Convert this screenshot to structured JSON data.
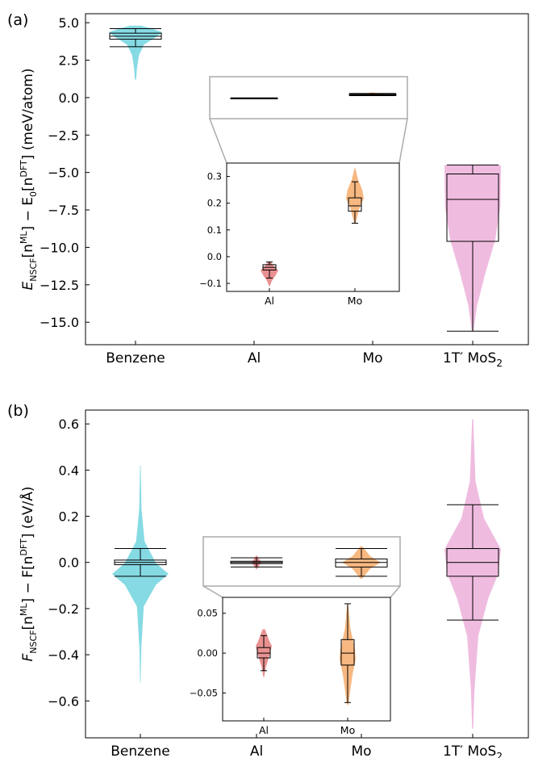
{
  "chart_data": [
    {
      "type": "violin",
      "panel_label": "(a)",
      "ylabel": "E_NSCF[n^ML] − E_0[n^DFT] (meV/atom)",
      "ylabel_parts": {
        "main1": "E",
        "sub1": "NSCF",
        "mid1": "[n",
        "sup1": "ML",
        "mid2": "] − E",
        "sub2": "0",
        "mid3": "[n",
        "sup2": "DFT",
        "tail": "] (meV/atom)"
      },
      "ylim": [
        -16.5,
        5.6
      ],
      "yticks": [
        5.0,
        2.5,
        0.0,
        -2.5,
        -5.0,
        -7.5,
        -10.0,
        -12.5,
        -15.0
      ],
      "ytick_labels": [
        "5.0",
        "2.5",
        "0.0",
        "−2.5",
        "−5.0",
        "−7.5",
        "−10.0",
        "−12.5",
        "−15.0"
      ],
      "categories": [
        "Benzene",
        "Al",
        "Mo",
        "1T′ MoS2"
      ],
      "category_labels": [
        {
          "base": "Benzene",
          "sub": ""
        },
        {
          "base": "Al",
          "sub": ""
        },
        {
          "base": "Mo",
          "sub": ""
        },
        {
          "base": "1T′ MoS",
          "sub": "2"
        }
      ],
      "series": [
        {
          "category": "Benzene",
          "color": "#7fd8e3",
          "min": 3.4,
          "q1": 3.9,
          "median": 4.1,
          "q3": 4.3,
          "max": 4.6,
          "violin_top": 4.8,
          "violin_bottom": 1.2
        },
        {
          "category": "Al",
          "color": "#e88b8b",
          "min": -0.05,
          "q1": -0.045,
          "median": -0.04,
          "q3": -0.03,
          "max": -0.02,
          "violin_top": -0.01,
          "violin_bottom": -0.06
        },
        {
          "category": "Mo",
          "color": "#f7b47a",
          "min": 0.13,
          "q1": 0.17,
          "median": 0.19,
          "q3": 0.22,
          "max": 0.28,
          "violin_top": 0.33,
          "violin_bottom": 0.12
        },
        {
          "category": "1T′ MoS2",
          "color": "#eeb8de",
          "min": -15.6,
          "q1": -9.6,
          "median": -6.8,
          "q3": -5.1,
          "max": -4.5,
          "violin_top": -4.5,
          "violin_bottom": -15.6
        }
      ],
      "inset": {
        "categories": [
          "Al",
          "Mo"
        ],
        "ylim": [
          -0.13,
          0.35
        ],
        "yticks": [
          0.3,
          0.2,
          0.1,
          0.0,
          -0.1
        ],
        "ytick_labels": [
          "0.3",
          "0.2",
          "0.1",
          "0.0",
          "−0.1"
        ],
        "series": [
          {
            "category": "Al",
            "color": "#e88b8b",
            "min": -0.08,
            "q1": -0.05,
            "median": -0.04,
            "q3": -0.03,
            "max": -0.02,
            "violin_top": -0.02,
            "violin_bottom": -0.11
          },
          {
            "category": "Mo",
            "color": "#f7b47a",
            "min": 0.125,
            "q1": 0.17,
            "median": 0.19,
            "q3": 0.22,
            "max": 0.28,
            "violin_top": 0.33,
            "violin_bottom": 0.125
          }
        ]
      }
    },
    {
      "type": "violin",
      "panel_label": "(b)",
      "ylabel": "F_NSCF[n^ML] − F[n^DFT] (eV/Å)",
      "ylabel_parts": {
        "main1": "F",
        "sub1": "NSCF",
        "mid1": "[n",
        "sup1": "ML",
        "mid2": "] − F[n",
        "sup2": "DFT",
        "tail": "] (eV/Å)"
      },
      "ylim": [
        -0.76,
        0.66
      ],
      "yticks": [
        0.6,
        0.4,
        0.2,
        0.0,
        -0.2,
        -0.4,
        -0.6
      ],
      "ytick_labels": [
        "0.6",
        "0.4",
        "0.2",
        "0.0",
        "−0.2",
        "−0.4",
        "−0.6"
      ],
      "categories": [
        "Benzene",
        "Al",
        "Mo",
        "1T′ MoS2"
      ],
      "category_labels": [
        {
          "base": "Benzene",
          "sub": ""
        },
        {
          "base": "Al",
          "sub": ""
        },
        {
          "base": "Mo",
          "sub": ""
        },
        {
          "base": "1T′ MoS",
          "sub": "2"
        }
      ],
      "series": [
        {
          "category": "Benzene",
          "color": "#7fd8e3",
          "min": -0.06,
          "q1": -0.01,
          "median": 0.0,
          "q3": 0.01,
          "max": 0.06,
          "violin_top": 0.42,
          "violin_bottom": -0.52
        },
        {
          "category": "Al",
          "color": "#e88b8b",
          "min": -0.02,
          "q1": -0.005,
          "median": 0.0,
          "q3": 0.005,
          "max": 0.02,
          "violin_top": 0.03,
          "violin_bottom": -0.03
        },
        {
          "category": "Mo",
          "color": "#f7b47a",
          "min": -0.06,
          "q1": -0.02,
          "median": 0.0,
          "q3": 0.015,
          "max": 0.06,
          "violin_top": 0.07,
          "violin_bottom": -0.07
        },
        {
          "category": "1T′ MoS2",
          "color": "#eeb8de",
          "min": -0.25,
          "q1": -0.06,
          "median": 0.0,
          "q3": 0.06,
          "max": 0.25,
          "violin_top": 0.62,
          "violin_bottom": -0.72
        }
      ],
      "inset": {
        "categories": [
          "Al",
          "Mo"
        ],
        "ylim": [
          -0.085,
          0.07
        ],
        "yticks": [
          0.05,
          0.0,
          -0.05
        ],
        "ytick_labels": [
          "0.05",
          "0.00",
          "−0.05"
        ],
        "series": [
          {
            "category": "Al",
            "color": "#e88b8b",
            "min": -0.022,
            "q1": -0.006,
            "median": 0.0,
            "q3": 0.007,
            "max": 0.022,
            "violin_top": 0.03,
            "violin_bottom": -0.03
          },
          {
            "category": "Mo",
            "color": "#f7b47a",
            "min": -0.062,
            "q1": -0.015,
            "median": 0.0,
            "q3": 0.017,
            "max": 0.062,
            "violin_top": 0.062,
            "violin_bottom": -0.065
          }
        ]
      }
    }
  ]
}
